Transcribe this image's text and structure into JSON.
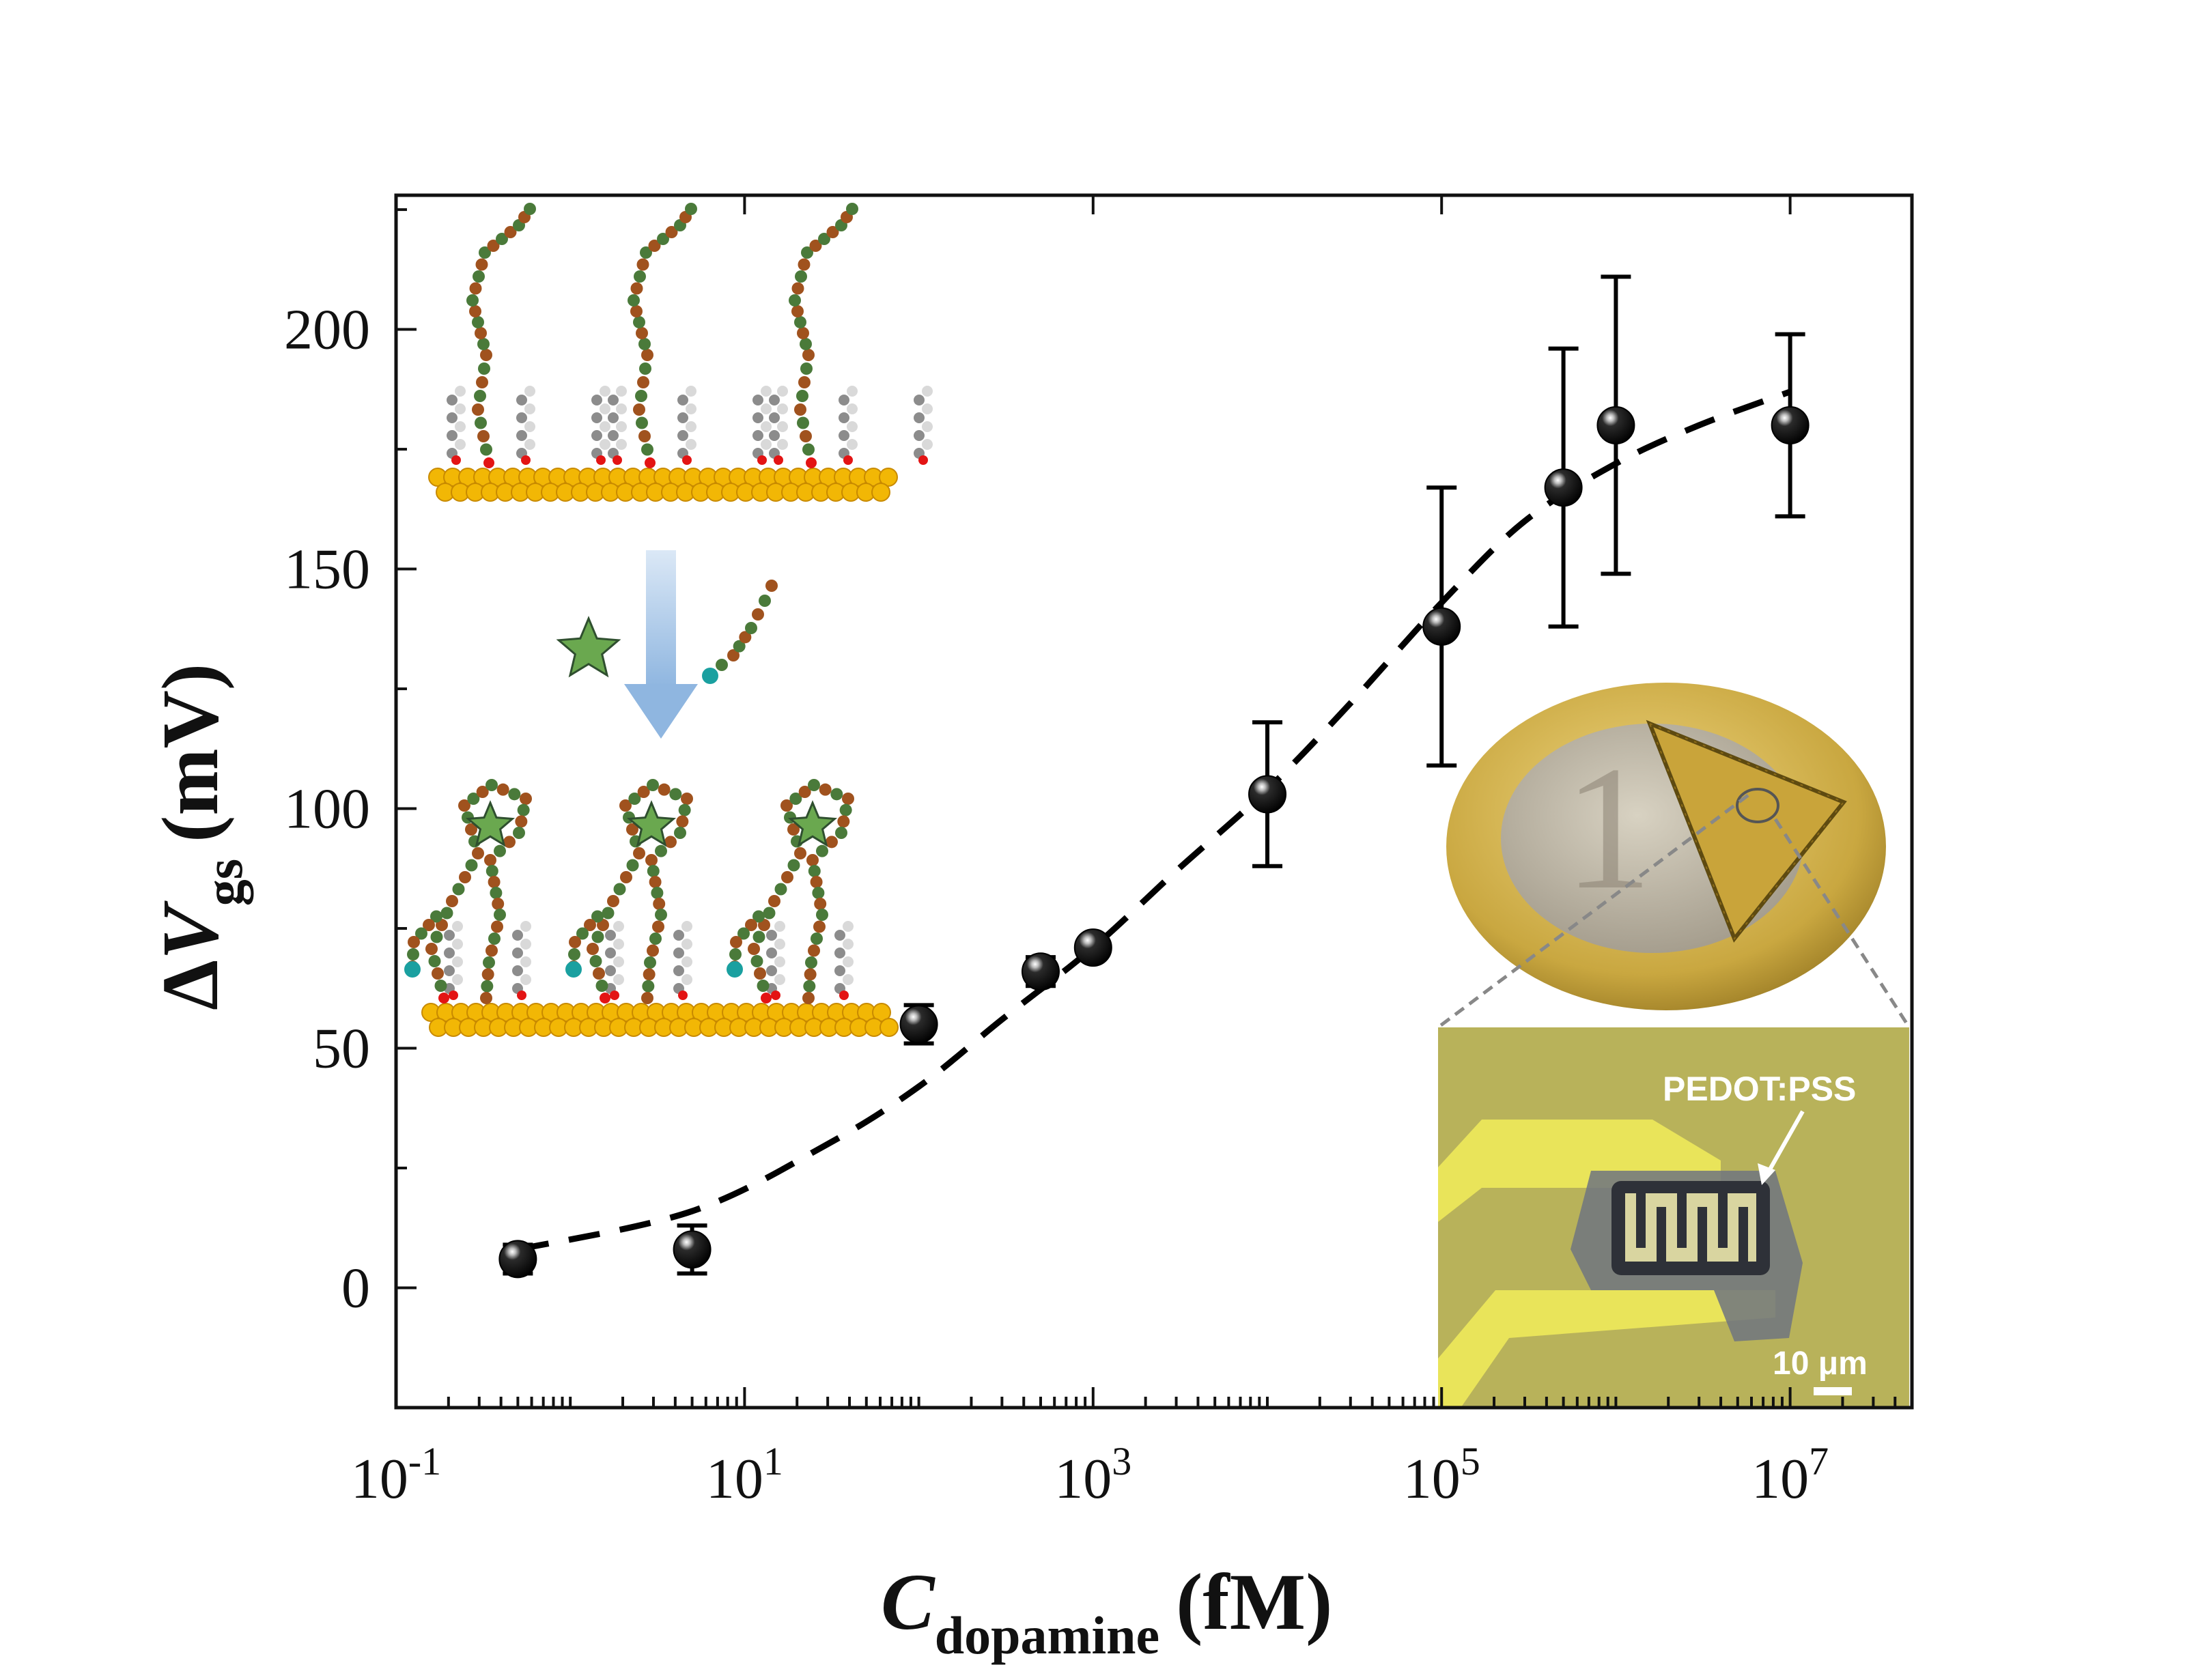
{
  "chart_data": {
    "type": "scatter",
    "title": "",
    "x_scale": "log",
    "xlim": [
      0.1,
      50000000
    ],
    "ylim": [
      -25,
      228
    ],
    "x_ticks": [
      {
        "value": 0.1,
        "base": "10",
        "exp": "-1"
      },
      {
        "value": 10,
        "base": "10",
        "exp": "1"
      },
      {
        "value": 1000,
        "base": "10",
        "exp": "3"
      },
      {
        "value": 100000,
        "base": "10",
        "exp": "5"
      },
      {
        "value": 10000000,
        "base": "10",
        "exp": "7"
      }
    ],
    "y_ticks": [
      {
        "value": 0,
        "label": "0"
      },
      {
        "value": 50,
        "label": "50"
      },
      {
        "value": 100,
        "label": "100"
      },
      {
        "value": 150,
        "label": "150"
      },
      {
        "value": 200,
        "label": "200"
      }
    ],
    "xlabel": {
      "main": "C",
      "sub": "dopamine",
      "unit": "(fM)"
    },
    "ylabel": {
      "prefix": "Δ",
      "main": "V",
      "sub": "gs",
      "unit": "(mV)"
    },
    "series": [
      {
        "name": "ΔVgs",
        "x": [
          0.5,
          5,
          100,
          500,
          1000,
          10000,
          100000,
          500000,
          1000000,
          10000000
        ],
        "y": [
          6,
          8,
          55,
          66,
          71,
          103,
          138,
          167,
          180,
          180
        ],
        "err": [
          3,
          5,
          4,
          3,
          2,
          15,
          29,
          29,
          31,
          19
        ]
      }
    ],
    "fit": {
      "style": "dashed",
      "x": [
        0.5,
        5,
        30,
        100,
        300,
        1000,
        3000,
        10000,
        30000,
        100000,
        300000,
        1000000,
        3000000,
        10000000
      ],
      "y": [
        8,
        16,
        30,
        42,
        56,
        71,
        87,
        104,
        122,
        143,
        160,
        172,
        180,
        187
      ]
    },
    "annotations": {
      "device_label": "PEDOT:PSS",
      "scale_bar": "10 μm"
    }
  },
  "colors": {
    "marker": "#000000",
    "axis": "#111111",
    "gold": "#f2b705",
    "gold_edge": "#c88a00",
    "strand_green": "#4a7a3a",
    "strand_brown": "#a0521e",
    "linker_red": "#e31414",
    "star": "#6aa84f",
    "arrow": "#b9d3ee",
    "micrograph_bg": "#b8b25a",
    "electrode": "#e9e45a"
  }
}
